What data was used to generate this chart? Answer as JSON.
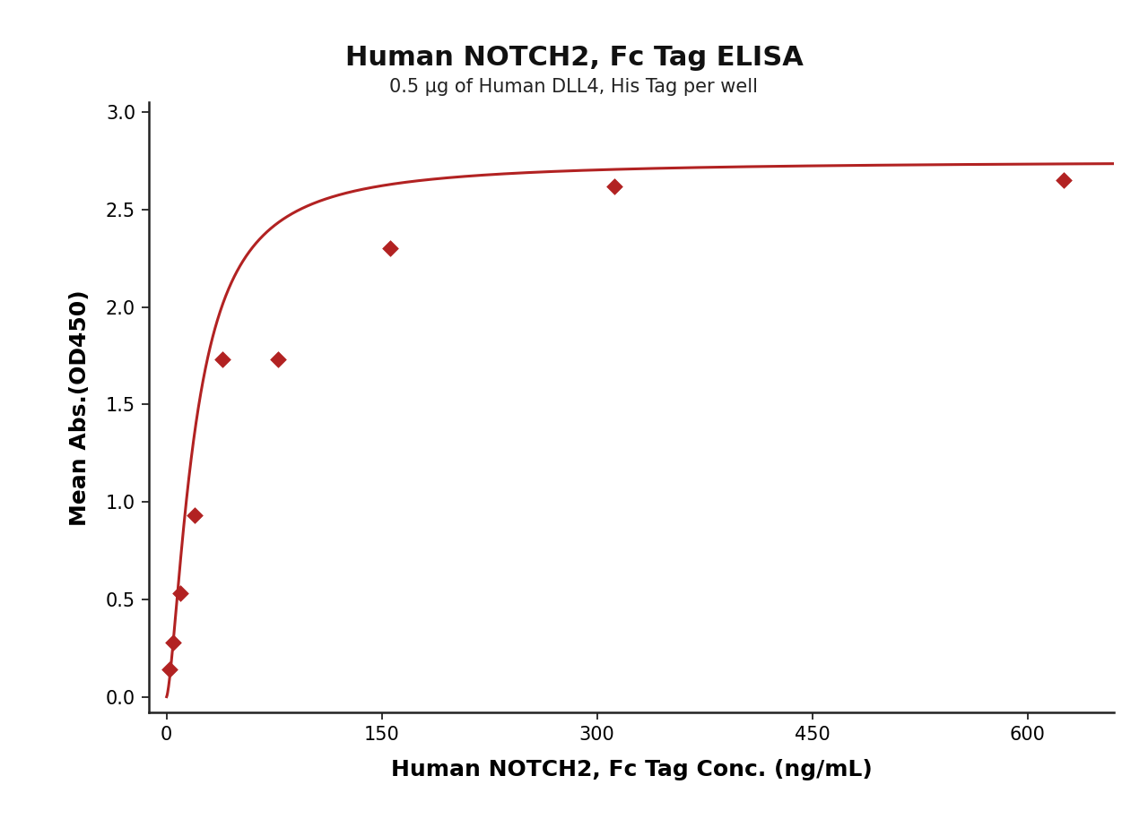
{
  "title": "Human NOTCH2, Fc Tag ELISA",
  "subtitle": "0.5 μg of Human DLL4, His Tag per well",
  "xlabel": "Human NOTCH2, Fc Tag Conc. (ng/mL)",
  "ylabel": "Mean Abs.(OD450)",
  "data_x": [
    2.4,
    4.9,
    9.8,
    19.5,
    39.0,
    78.0,
    156.0,
    312.0,
    625.0
  ],
  "data_y": [
    0.14,
    0.28,
    0.53,
    0.93,
    1.73,
    1.73,
    2.3,
    2.62,
    2.65
  ],
  "xlim": [
    -12,
    660
  ],
  "ylim": [
    -0.08,
    3.05
  ],
  "xticks": [
    0,
    150,
    300,
    450,
    600
  ],
  "yticks": [
    0.0,
    0.5,
    1.0,
    1.5,
    2.0,
    2.5,
    3.0
  ],
  "color": "#B22222",
  "marker": "D",
  "marker_size": 9,
  "line_width": 2.2,
  "title_fontsize": 22,
  "subtitle_fontsize": 15,
  "axis_label_fontsize": 18,
  "tick_fontsize": 15,
  "background_color": "#ffffff",
  "spine_color": "#222222"
}
